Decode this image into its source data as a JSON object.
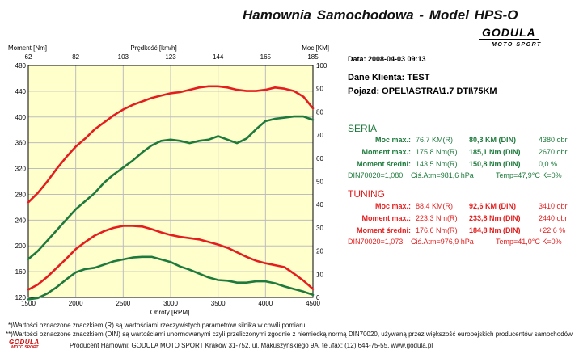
{
  "header": {
    "title": "Hamownia Samochodowa   -   Model HPS-O",
    "logo_main": "GODULA",
    "logo_sub": "MOTO SPORT"
  },
  "info": {
    "date": "Data: 2008-04-03  09:13",
    "client": "Dane Klienta: TEST",
    "vehicle": "Pojazd: OPEL\\ASTRA\\1.7 DTI\\75KM"
  },
  "seria": {
    "heading": "SERIA",
    "rows": [
      {
        "label": "Moc max.:",
        "v1": "76,7 KM(R)",
        "v2": "80,3 KM (DIN)",
        "v3": "4380 obr"
      },
      {
        "label": "Moment max.:",
        "v1": "175,8 Nm(R)",
        "v2": "185,1 Nm (DIN)",
        "v3": "2670 obr"
      },
      {
        "label": "Moment średni:",
        "v1": "143,5 Nm(R)",
        "v2": "150,8 Nm (DIN)",
        "v3": "0,0 %"
      }
    ],
    "extra": {
      "din": "DIN70020=1,080",
      "atm": "Ciś.Atm=981,6 hPa",
      "temp": "Temp=47,9°C  K=0%"
    }
  },
  "tuning": {
    "heading": "TUNING",
    "rows": [
      {
        "label": "Moc max.:",
        "v1": "88,4 KM(R)",
        "v2": "92,6 KM (DIN)",
        "v3": "3410 obr"
      },
      {
        "label": "Moment max.:",
        "v1": "223,3 Nm(R)",
        "v2": "233,8 Nm (DIN)",
        "v3": "2440 obr"
      },
      {
        "label": "Moment średni:",
        "v1": "176,6 Nm(R)",
        "v2": "184,8 Nm (DIN)",
        "v3": "+22,6 %"
      }
    ],
    "extra": {
      "din": "DIN70020=1,073",
      "atm": "Ciś.Atm=976,9 hPa",
      "temp": "Temp=41,0°C  K=0%"
    }
  },
  "footer": {
    "note1": "*)Wartości oznaczone znaczkiem (R) są wartościami rzeczywistych parametrów silnika w chwili pomiaru.",
    "note2": "**)Wartości oznaczone znaczkiem (DIN) są wartościami unormowanymi czyli przeliczonymi zgodnie z niemiecką normą DIN70020, używaną przez większość europejskich producentów samochodów.",
    "producer": "Producent Hamowni: GODULA MOTO SPORT Kraków 31-752, ul. Makuszyńskiego 9A, tel./fax: (12) 644-75-55, www.godula.pl",
    "logo_main": "GODULA",
    "logo_sub": "MOTO SPORT"
  },
  "colors": {
    "seria": "#1e7a3c",
    "tuning": "#e41e1e",
    "plot_bg": "#ffffcc",
    "grid": "#bdbdbd"
  },
  "chart_data": {
    "type": "line",
    "top_axis_label": "Prędkość [km/h]",
    "top_ticks": [
      "62",
      "82",
      "103",
      "123",
      "144",
      "165",
      "185"
    ],
    "left_label": "Moment [Nm]",
    "right_label": "Moc [KM]",
    "xlabel": "Obroty [RPM]",
    "xlim": [
      1500,
      4500
    ],
    "x_ticks": [
      1500,
      2000,
      2500,
      3000,
      3500,
      4000,
      4500
    ],
    "ylim_left": [
      120,
      480
    ],
    "y_ticks_left": [
      120,
      160,
      200,
      240,
      280,
      320,
      360,
      400,
      440,
      480
    ],
    "ylim_right": [
      0,
      100
    ],
    "y_ticks_right": [
      0,
      10,
      20,
      30,
      40,
      50,
      60,
      70,
      80,
      90,
      100
    ],
    "grid": true,
    "series": [
      {
        "name": "Moc TUNING",
        "axis": "right",
        "color": "#e41e1e",
        "x": [
          1500,
          1600,
          1700,
          1800,
          1900,
          2000,
          2100,
          2200,
          2300,
          2400,
          2500,
          2600,
          2700,
          2800,
          2900,
          3000,
          3100,
          3200,
          3300,
          3400,
          3500,
          3600,
          3700,
          3800,
          3900,
          4000,
          4100,
          4200,
          4300,
          4400,
          4500
        ],
        "y": [
          41,
          45,
          50,
          55.5,
          60.5,
          65,
          68.5,
          72.5,
          75.5,
          78.5,
          81,
          83,
          84.5,
          86,
          87,
          88,
          88.5,
          89.5,
          90.5,
          91,
          91,
          90.5,
          89.5,
          89,
          89,
          89.5,
          90.5,
          90,
          89,
          86.5,
          81.5
        ]
      },
      {
        "name": "Moc SERIA",
        "axis": "right",
        "color": "#1e7a3c",
        "x": [
          1500,
          1600,
          1700,
          1800,
          1900,
          2000,
          2100,
          2200,
          2300,
          2400,
          2500,
          2600,
          2700,
          2800,
          2900,
          3000,
          3100,
          3200,
          3300,
          3400,
          3500,
          3600,
          3700,
          3800,
          3900,
          4000,
          4100,
          4200,
          4300,
          4400,
          4500
        ],
        "y": [
          16.5,
          20,
          24.5,
          29,
          33.5,
          38,
          41.5,
          45,
          49.5,
          53,
          56,
          59,
          62.5,
          65.5,
          67.5,
          68,
          67.5,
          66.5,
          67.5,
          68,
          69.5,
          68,
          66.5,
          68.5,
          72.5,
          76,
          77,
          77.5,
          78,
          78,
          76.5
        ]
      },
      {
        "name": "Moment TUNING",
        "axis": "left",
        "color": "#e41e1e",
        "x": [
          1500,
          1600,
          1700,
          1800,
          1900,
          2000,
          2100,
          2200,
          2300,
          2400,
          2500,
          2600,
          2700,
          2800,
          2900,
          3000,
          3100,
          3200,
          3300,
          3400,
          3500,
          3600,
          3700,
          3800,
          3900,
          4000,
          4100,
          4200,
          4300,
          4400,
          4500
        ],
        "y": [
          132,
          140,
          152,
          166,
          180,
          195,
          206,
          216,
          223,
          228,
          231,
          231,
          230,
          226,
          221,
          217,
          214,
          212,
          210,
          206,
          202,
          197,
          190,
          183,
          177,
          173,
          170,
          167,
          157,
          146,
          133
        ]
      },
      {
        "name": "Moment SERIA",
        "axis": "left",
        "color": "#1e7a3c",
        "x": [
          1500,
          1600,
          1700,
          1800,
          1900,
          2000,
          2100,
          2200,
          2300,
          2400,
          2500,
          2600,
          2700,
          2800,
          2900,
          3000,
          3100,
          3200,
          3300,
          3400,
          3500,
          3600,
          3700,
          3800,
          3900,
          4000,
          4100,
          4200,
          4300,
          4400,
          4500
        ],
        "y": [
          117,
          119,
          126,
          136,
          148,
          159,
          164,
          166,
          171,
          176,
          179,
          182,
          183,
          183,
          179,
          175,
          168,
          163,
          157,
          151,
          147,
          146,
          143,
          143,
          145,
          145,
          142,
          137,
          133,
          129,
          124
        ]
      }
    ]
  }
}
